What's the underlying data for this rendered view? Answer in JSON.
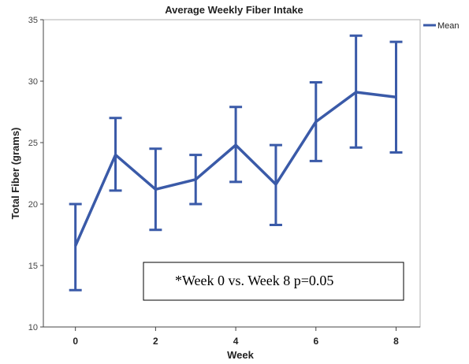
{
  "chart_data": {
    "type": "line",
    "title": "Average Weekly Fiber Intake",
    "xlabel": "Week",
    "ylabel": "Total Fiber (grams)",
    "xlim": [
      -0.8,
      8.6
    ],
    "ylim": [
      10,
      35
    ],
    "x_ticks": [
      0,
      2,
      4,
      6,
      8
    ],
    "y_ticks": [
      10,
      15,
      20,
      25,
      30,
      35
    ],
    "grid": false,
    "legend_position": "top-right",
    "series": [
      {
        "name": "Mean",
        "color": "#3a5aa8",
        "x": [
          0,
          1,
          2,
          3,
          4,
          5,
          6,
          7,
          8
        ],
        "y": [
          16.6,
          24.0,
          21.2,
          22.0,
          24.8,
          21.6,
          26.7,
          29.1,
          28.7
        ],
        "error_low": [
          13.0,
          21.1,
          17.9,
          20.0,
          21.8,
          18.3,
          23.5,
          24.6,
          24.2
        ],
        "error_high": [
          20.0,
          27.0,
          24.5,
          24.0,
          27.9,
          24.8,
          29.9,
          33.7,
          33.2
        ]
      }
    ],
    "annotation": "*Week 0 vs. Week 8 p=0.05"
  }
}
